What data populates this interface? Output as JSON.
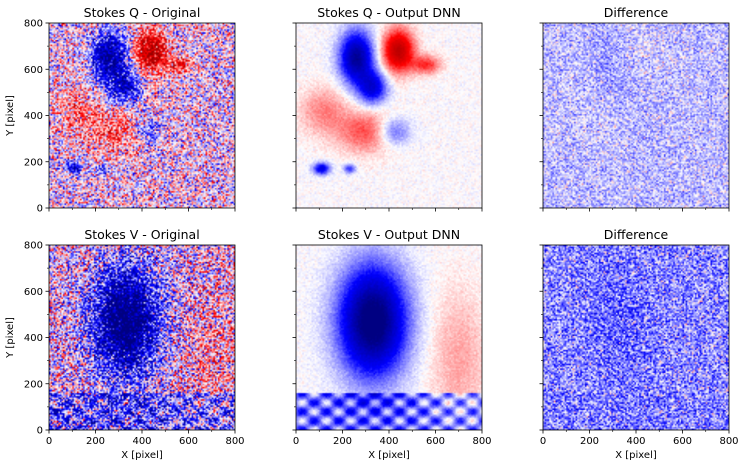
{
  "chart_data": [
    {
      "type": "heatmap",
      "title": "Stokes Q - Original",
      "xlabel": "",
      "ylabel": "Y [pixel]",
      "xlim": [
        0,
        800
      ],
      "ylim": [
        0,
        800
      ],
      "colormap": "seismic",
      "field": "Q",
      "variant": "original"
    },
    {
      "type": "heatmap",
      "title": "Stokes Q - Output DNN",
      "xlabel": "",
      "ylabel": "",
      "xlim": [
        0,
        800
      ],
      "ylim": [
        0,
        800
      ],
      "colormap": "seismic",
      "field": "Q",
      "variant": "dnn"
    },
    {
      "type": "heatmap",
      "title": "Difference",
      "xlabel": "",
      "ylabel": "",
      "xlim": [
        0,
        800
      ],
      "ylim": [
        0,
        800
      ],
      "colormap": "seismic",
      "field": "Q",
      "variant": "diff"
    },
    {
      "type": "heatmap",
      "title": "Stokes V - Original",
      "xlabel": "X [pixel]",
      "ylabel": "Y [pixel]",
      "xlim": [
        0,
        800
      ],
      "ylim": [
        0,
        800
      ],
      "colormap": "seismic",
      "field": "V",
      "variant": "original"
    },
    {
      "type": "heatmap",
      "title": "Stokes V - Output DNN",
      "xlabel": "X [pixel]",
      "ylabel": "",
      "xlim": [
        0,
        800
      ],
      "ylim": [
        0,
        800
      ],
      "colormap": "seismic",
      "field": "V",
      "variant": "dnn"
    },
    {
      "type": "heatmap",
      "title": "Difference",
      "xlabel": "X [pixel]",
      "ylabel": "",
      "xlim": [
        0,
        800
      ],
      "ylim": [
        0,
        800
      ],
      "colormap": "seismic",
      "field": "V",
      "variant": "diff"
    }
  ],
  "tick_values": [
    0,
    200,
    400,
    600,
    800
  ],
  "tick_labels": [
    "0",
    "200",
    "400",
    "600",
    "800"
  ],
  "colors": {
    "negative": "#00008c",
    "positive": "#d40000",
    "zero": "#ffffff",
    "axis": "#000000"
  }
}
